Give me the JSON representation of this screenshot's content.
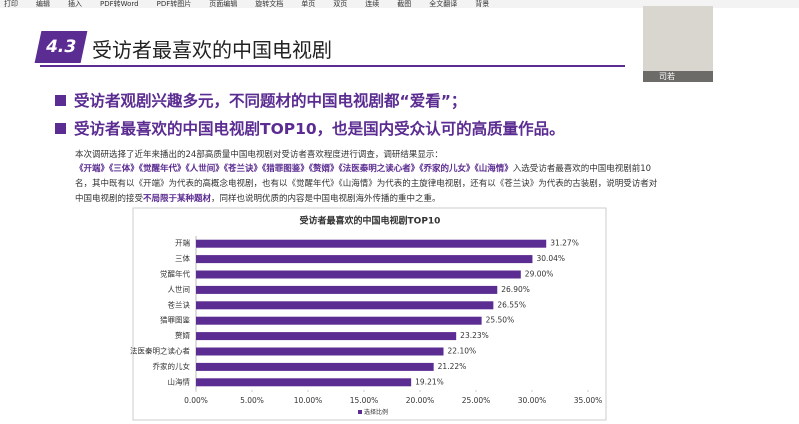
{
  "toolbar": {
    "items": [
      "打印",
      "编辑",
      "插入",
      "PDF转Word",
      "PDF转图片",
      "页面编辑",
      "旋转文档",
      "单页",
      "双页",
      "连续",
      "截图",
      "全文翻译",
      "背景"
    ]
  },
  "section": {
    "number": "4.3",
    "title": "受访者最喜欢的中国电视剧"
  },
  "bullets": [
    "受访者观剧兴趣多元，不同题材的中国电视剧都“爱看”；",
    "受访者最喜欢的中国电视剧TOP10，也是国内受众认可的高质量作品。"
  ],
  "intro": "本次调研选择了近年来播出的24部高质量中国电视剧对受访者喜欢程度进行调查，调研结果显示：",
  "paragraph": [
    "《开端》《三体》《觉醒年代》《人世间》《苍兰诀》《猎罪图鉴》《赘婿》《法医秦明之读心者》《乔家的儿女》《山海情》",
    "入选受访者最喜欢的中国电视剧前10名，其中既有以《开端》为代表的高概念电视剧，也有以《觉醒年代》《山海情》为代表的主旋律电视剧，还有以《苍兰诀》为代表的古装剧，说明受访者对中国电视剧的接受",
    "不局限于某种题材",
    "，同样也说明优质的内容是中国电视剧海外传播的重中之重。"
  ],
  "video": {
    "name": "司若"
  },
  "chart_data": {
    "type": "hbar",
    "title": "受访者最喜欢的中国电视剧TOP10",
    "categories": [
      "开端",
      "三体",
      "觉醒年代",
      "人世间",
      "苍兰诀",
      "猎罪图鉴",
      "赘婿",
      "法医秦明之读心者",
      "乔家的儿女",
      "山海情"
    ],
    "series": [
      {
        "name": "选择比例",
        "color": "#5b2c91",
        "values": [
          31.27,
          30.04,
          29.0,
          26.9,
          26.55,
          25.5,
          23.23,
          22.1,
          21.22,
          19.21
        ],
        "value_labels": [
          "31.27%",
          "30.04%",
          "29.00%",
          "26.90%",
          "26.55%",
          "25.50%",
          "23.23%",
          "22.10%",
          "21.22%",
          "19.21%"
        ]
      }
    ],
    "xlim": [
      0,
      35
    ],
    "xticks": [
      {
        "value": 0,
        "label": "0.00%"
      },
      {
        "value": 5,
        "label": "5.00%"
      },
      {
        "value": 10,
        "label": "10.00%"
      },
      {
        "value": 15,
        "label": "15.00%"
      },
      {
        "value": 20,
        "label": "20.00%"
      },
      {
        "value": 25,
        "label": "25.00%"
      },
      {
        "value": 30,
        "label": "30.00%"
      },
      {
        "value": 35,
        "label": "35.00%"
      }
    ],
    "legend": "bottom"
  }
}
